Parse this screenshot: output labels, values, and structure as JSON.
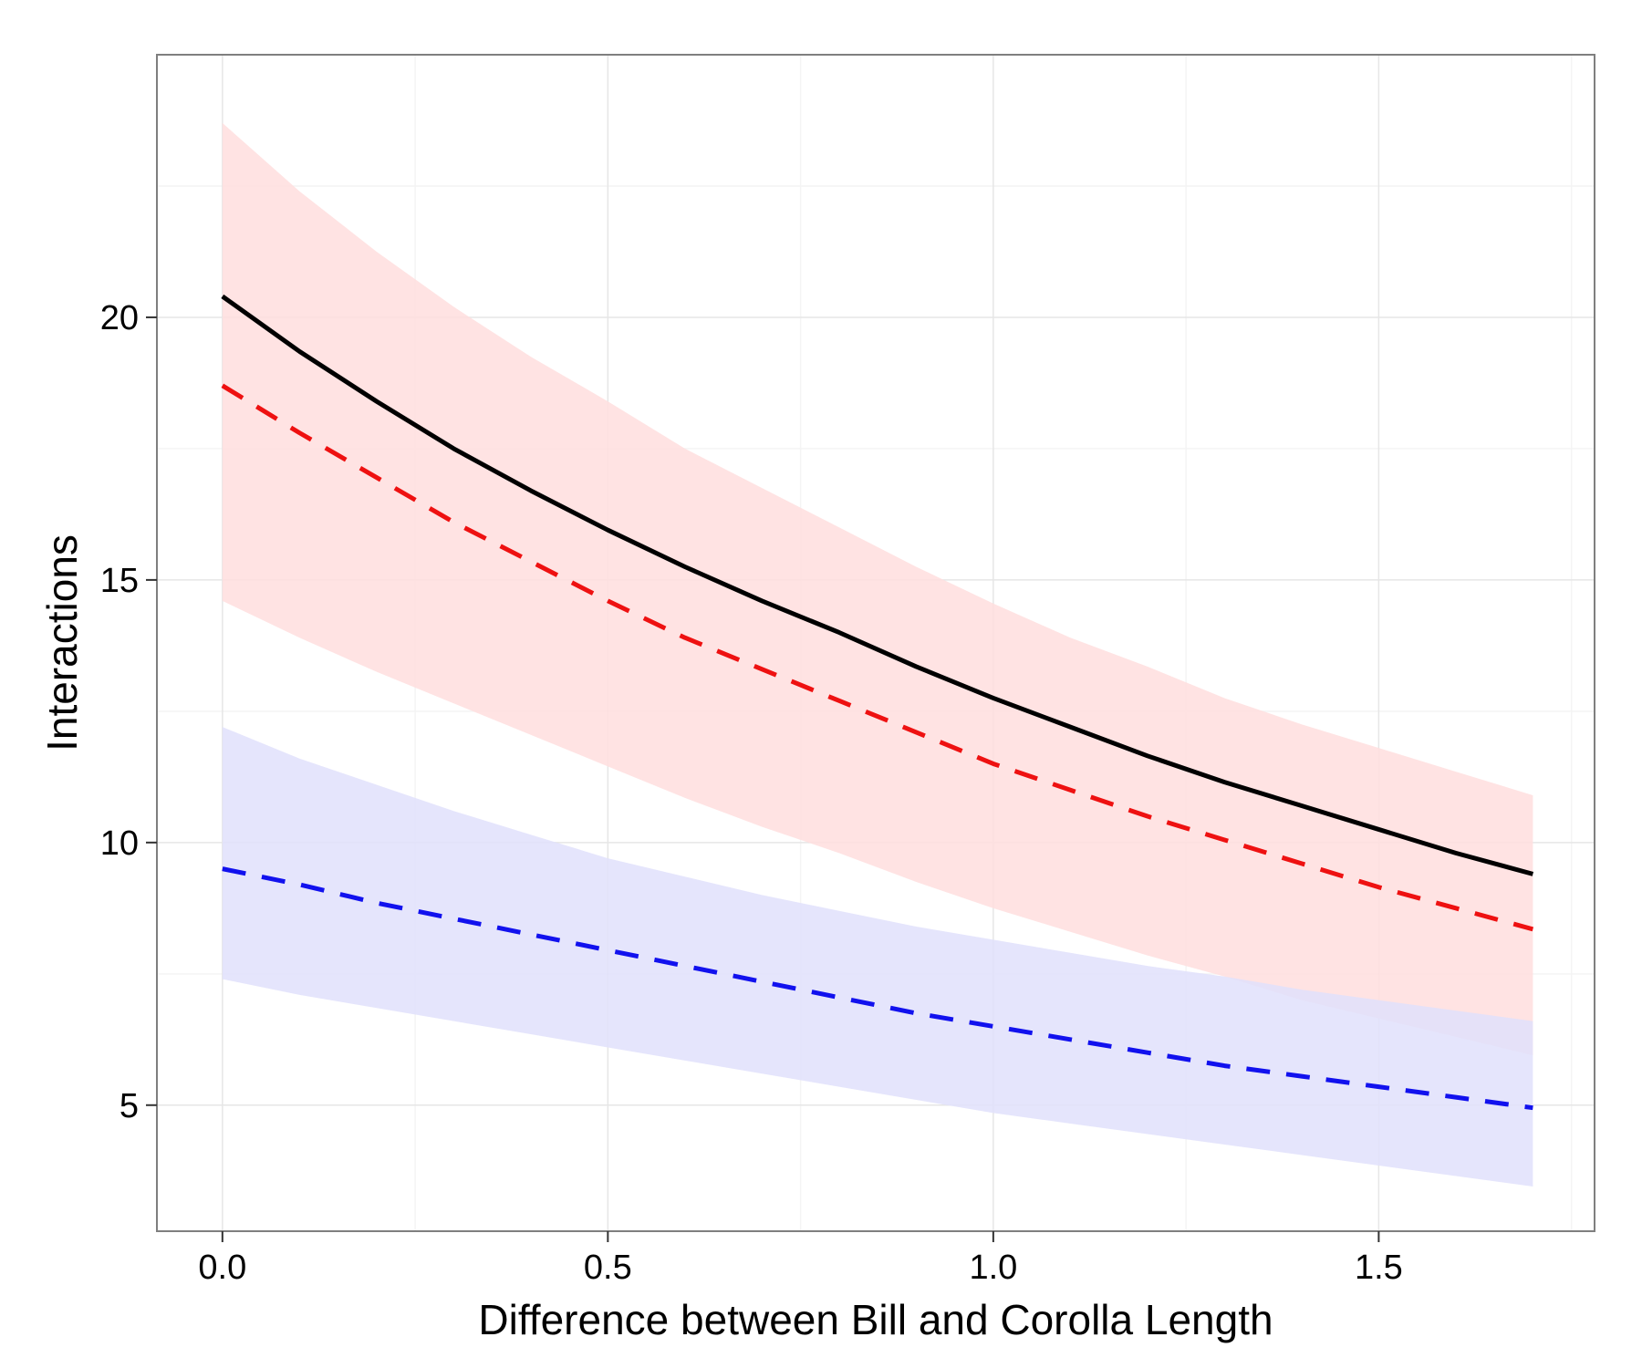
{
  "chart_data": {
    "type": "line",
    "title": "",
    "xlabel": "Difference between Bill and Corolla Length",
    "ylabel": "Interactions",
    "xlim": [
      -0.085,
      1.78
    ],
    "ylim": [
      2.6,
      25.0
    ],
    "x_ticks": [
      0.0,
      0.5,
      1.0,
      1.5
    ],
    "x_tick_labels": [
      "0.0",
      "0.5",
      "1.0",
      "1.5"
    ],
    "y_ticks": [
      5,
      10,
      15,
      20
    ],
    "y_tick_labels": [
      "5",
      "10",
      "15",
      "20"
    ],
    "grid": true,
    "legend": "none",
    "x": [
      0.0,
      0.1,
      0.2,
      0.3,
      0.4,
      0.5,
      0.6,
      0.7,
      0.8,
      0.9,
      1.0,
      1.1,
      1.2,
      1.3,
      1.4,
      1.5,
      1.6,
      1.7
    ],
    "series": [
      {
        "color": "#000000",
        "style": "solid",
        "values": [
          20.4,
          19.35,
          18.4,
          17.5,
          16.7,
          15.95,
          15.25,
          14.6,
          14.0,
          13.35,
          12.75,
          12.2,
          11.65,
          11.15,
          10.7,
          10.25,
          9.8,
          9.4
        ]
      },
      {
        "color": "#ee1111",
        "style": "dashed",
        "values": [
          18.7,
          17.8,
          16.95,
          16.1,
          15.35,
          14.6,
          13.9,
          13.3,
          12.7,
          12.1,
          11.5,
          11.0,
          10.5,
          10.05,
          9.6,
          9.15,
          8.75,
          8.35
        ],
        "band_color": "#ffdede",
        "band_lower": [
          14.6,
          13.9,
          13.25,
          12.65,
          12.05,
          11.45,
          10.85,
          10.3,
          9.8,
          9.25,
          8.75,
          8.3,
          7.85,
          7.45,
          7.0,
          6.65,
          6.3,
          5.95
        ],
        "band_upper": [
          23.7,
          22.4,
          21.25,
          20.2,
          19.25,
          18.4,
          17.5,
          16.75,
          16.0,
          15.25,
          14.55,
          13.9,
          13.35,
          12.75,
          12.25,
          11.8,
          11.35,
          10.9
        ]
      },
      {
        "color": "#1111ee",
        "style": "dashed",
        "values": [
          9.5,
          9.2,
          8.85,
          8.55,
          8.25,
          7.95,
          7.65,
          7.35,
          7.05,
          6.75,
          6.5,
          6.25,
          6.0,
          5.75,
          5.55,
          5.35,
          5.15,
          4.95
        ],
        "band_color": "#e0e0fc",
        "band_lower": [
          7.4,
          7.1,
          6.85,
          6.6,
          6.35,
          6.1,
          5.85,
          5.6,
          5.35,
          5.1,
          4.85,
          4.65,
          4.45,
          4.25,
          4.05,
          3.85,
          3.65,
          3.45
        ],
        "band_upper": [
          12.2,
          11.6,
          11.1,
          10.6,
          10.15,
          9.7,
          9.35,
          9.0,
          8.7,
          8.4,
          8.15,
          7.9,
          7.65,
          7.45,
          7.2,
          7.0,
          6.8,
          6.6
        ]
      }
    ]
  }
}
